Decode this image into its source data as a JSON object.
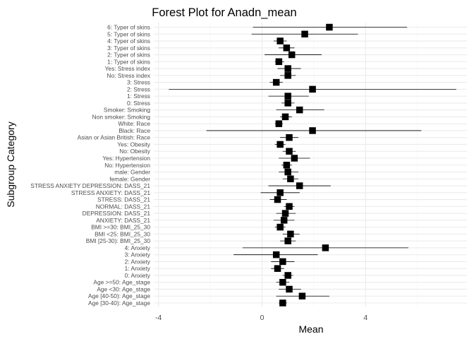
{
  "chart_data": {
    "type": "forest",
    "title": "Forest Plot for Anadn_mean",
    "xlabel": "Mean",
    "ylabel": "Subgroup Category",
    "xlim": [
      -4,
      8
    ],
    "x_ticks": [
      -4,
      0,
      4
    ],
    "grid": true,
    "colors": {
      "point": "#000000",
      "line": "#000000",
      "grid_major": "#ebebeb",
      "grid_minor": "#f3f3f3"
    },
    "rows": [
      {
        "label": "6: Typer of skins",
        "mean": 2.6,
        "lo": -0.35,
        "hi": 5.6
      },
      {
        "label": "5: Typer of skins",
        "mean": 1.65,
        "lo": -0.4,
        "hi": 3.7
      },
      {
        "label": "4: Typer of skins",
        "mean": 0.7,
        "lo": 0.45,
        "hi": 0.95
      },
      {
        "label": "3: Typer of skins",
        "mean": 0.95,
        "lo": 0.65,
        "hi": 1.25
      },
      {
        "label": "2: Typer of skins",
        "mean": 1.15,
        "lo": 0.1,
        "hi": 2.3
      },
      {
        "label": "1: Typer of skins",
        "mean": 0.65,
        "lo": 0.5,
        "hi": 0.85
      },
      {
        "label": "Yes: Stress index",
        "mean": 1.0,
        "lo": 0.6,
        "hi": 1.5
      },
      {
        "label": "No: Stress index",
        "mean": 1.0,
        "lo": 0.7,
        "hi": 1.3
      },
      {
        "label": "3: Stress",
        "mean": 0.55,
        "lo": 0.3,
        "hi": 0.8
      },
      {
        "label": "2: Stress",
        "mean": 1.95,
        "lo": -3.6,
        "hi": 7.5
      },
      {
        "label": "1: Stress",
        "mean": 1.0,
        "lo": 0.25,
        "hi": 1.8
      },
      {
        "label": "0: Stress",
        "mean": 1.0,
        "lo": 0.75,
        "hi": 1.25
      },
      {
        "label": "Smoker: Smoking",
        "mean": 1.45,
        "lo": 0.55,
        "hi": 2.4
      },
      {
        "label": "Non smoker: Smoking",
        "mean": 0.9,
        "lo": 0.7,
        "hi": 1.15
      },
      {
        "label": "White: Race",
        "mean": 0.65,
        "lo": 0.5,
        "hi": 0.8
      },
      {
        "label": "Black: Race",
        "mean": 1.95,
        "lo": -2.15,
        "hi": 6.15
      },
      {
        "label": "Asian or Asian British: Race",
        "mean": 1.05,
        "lo": 0.7,
        "hi": 1.4
      },
      {
        "label": "Yes: Obesity",
        "mean": 0.7,
        "lo": 0.5,
        "hi": 0.9
      },
      {
        "label": "No: Obesity",
        "mean": 1.05,
        "lo": 0.8,
        "hi": 1.3
      },
      {
        "label": "Yes: Hypertension",
        "mean": 1.25,
        "lo": 0.65,
        "hi": 1.85
      },
      {
        "label": "No: Hypertension",
        "mean": 0.95,
        "lo": 0.75,
        "hi": 1.15
      },
      {
        "label": "male: Gender",
        "mean": 1.0,
        "lo": 0.65,
        "hi": 1.4
      },
      {
        "label": "female: Gender",
        "mean": 1.1,
        "lo": 0.8,
        "hi": 1.4
      },
      {
        "label": "STRESS ANXIETY DEPRESSION: DASS_21",
        "mean": 1.45,
        "lo": 0.25,
        "hi": 2.65
      },
      {
        "label": "STRESS ANXIETY: DASS_21",
        "mean": 0.7,
        "lo": -0.05,
        "hi": 1.45
      },
      {
        "label": "STRESS: DASS_21",
        "mean": 0.6,
        "lo": 0.3,
        "hi": 0.95
      },
      {
        "label": "NORMAL: DASS_21",
        "mean": 1.05,
        "lo": 0.85,
        "hi": 1.25
      },
      {
        "label": "DEPRESSION: DASS_21",
        "mean": 0.9,
        "lo": 0.55,
        "hi": 1.3
      },
      {
        "label": "ANXIETY: DASS_21",
        "mean": 0.85,
        "lo": 0.45,
        "hi": 1.25
      },
      {
        "label": "BMI >=30: BMI_25_30",
        "mean": 0.7,
        "lo": 0.5,
        "hi": 0.9
      },
      {
        "label": "BMI <25: BMI_25_30",
        "mean": 1.1,
        "lo": 0.8,
        "hi": 1.45
      },
      {
        "label": "BMI [25-30): BMI_25_30",
        "mean": 1.0,
        "lo": 0.7,
        "hi": 1.3
      },
      {
        "label": "4: Anxiety",
        "mean": 2.45,
        "lo": -0.75,
        "hi": 5.65
      },
      {
        "label": "3: Anxiety",
        "mean": 0.55,
        "lo": -1.1,
        "hi": 2.15
      },
      {
        "label": "2: Anxiety",
        "mean": 0.8,
        "lo": 0.35,
        "hi": 1.25
      },
      {
        "label": "1: Anxiety",
        "mean": 0.6,
        "lo": 0.35,
        "hi": 0.85
      },
      {
        "label": "0: Anxiety",
        "mean": 1.0,
        "lo": 0.8,
        "hi": 1.2
      },
      {
        "label": "Age >=50: Age_stage",
        "mean": 0.8,
        "lo": 0.55,
        "hi": 1.05
      },
      {
        "label": "Age <30: Age_stage",
        "mean": 1.05,
        "lo": 0.65,
        "hi": 1.5
      },
      {
        "label": "Age [40-50): Age_stage",
        "mean": 1.55,
        "lo": 0.55,
        "hi": 2.6
      },
      {
        "label": "Age [30-40): Age_stage",
        "mean": 0.8,
        "lo": 0.65,
        "hi": 0.95
      }
    ]
  }
}
